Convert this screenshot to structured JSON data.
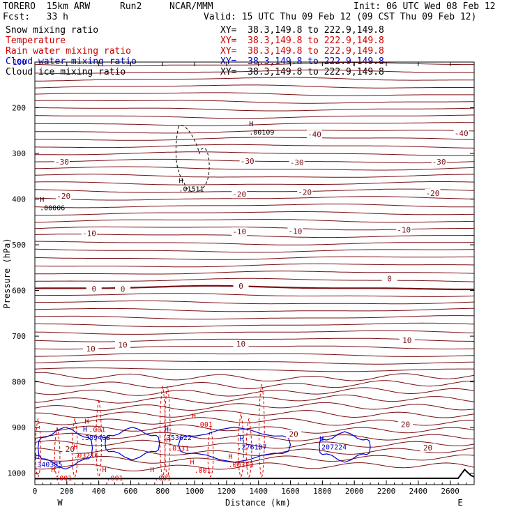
{
  "header": {
    "model": "TORERO  15km ARW",
    "run": "Run2",
    "org": "NCAR/MMM",
    "init": "Init: 06 UTC Wed 08 Feb 12",
    "fcst": "Fcst:   33 h",
    "valid": "Valid: 15 UTC Thu 09 Feb 12 (09 CST Thu 09 Feb 12)"
  },
  "fields": [
    {
      "name": "Snow mixing ratio",
      "xy": "XY=  38.3,149.8 to 222.9,149.8",
      "color": "#000000"
    },
    {
      "name": "Temperature",
      "xy": "XY=  38.3,149.8 to 222.9,149.8",
      "color": "#cc0000"
    },
    {
      "name": "Rain water mixing ratio",
      "xy": "XY=  38.3,149.8 to 222.9,149.8",
      "color": "#cc0000"
    },
    {
      "name": "Cloud water mixing ratio",
      "xy": "XY=  38.3,149.8 to 222.9,149.8",
      "color": "#0000cc"
    },
    {
      "name": "Cloud ice mixing ratio",
      "xy": "XY=  38.3,149.8 to 222.9,149.8",
      "color": "#000000"
    }
  ],
  "colors": {
    "temperature": "#7a0f12",
    "freezing_line": "#7a0f12",
    "rain": "#e00000",
    "cloud_water": "#0000cc",
    "ice": "#000000",
    "terrain": "#000000"
  },
  "chart_data": {
    "type": "contour",
    "xlabel": "Distance (km)",
    "ylabel": "Pressure (hPa)",
    "xlim": [
      0,
      2750
    ],
    "ylim": [
      100,
      1025
    ],
    "x_ticks": [
      0,
      200,
      400,
      600,
      800,
      1000,
      1200,
      1400,
      1600,
      1800,
      2000,
      2200,
      2400,
      2600
    ],
    "y_ticks": [
      200,
      300,
      400,
      500,
      600,
      700,
      800,
      900,
      1000
    ],
    "x_end_labels": {
      "left": "W",
      "right": "E"
    },
    "temperature_labels": [
      {
        "text": "-40",
        "x": 1750,
        "p": 258
      },
      {
        "text": "-40",
        "x": 2670,
        "p": 256
      },
      {
        "text": "-30",
        "x": 170,
        "p": 318
      },
      {
        "text": "-30",
        "x": 1330,
        "p": 317
      },
      {
        "text": "-30",
        "x": 1640,
        "p": 320
      },
      {
        "text": "-30",
        "x": 2530,
        "p": 318
      },
      {
        "text": "-20",
        "x": 180,
        "p": 393
      },
      {
        "text": "-20",
        "x": 1280,
        "p": 389
      },
      {
        "text": "-20",
        "x": 1690,
        "p": 385
      },
      {
        "text": "-20",
        "x": 2490,
        "p": 387
      },
      {
        "text": "-10",
        "x": 340,
        "p": 475
      },
      {
        "text": "-10",
        "x": 1280,
        "p": 471
      },
      {
        "text": "-10",
        "x": 1630,
        "p": 470
      },
      {
        "text": "-10",
        "x": 2310,
        "p": 467
      },
      {
        "text": "0",
        "x": 370,
        "p": 596
      },
      {
        "text": "0",
        "x": 550,
        "p": 597
      },
      {
        "text": "0",
        "x": 1290,
        "p": 590
      },
      {
        "text": "0",
        "x": 2220,
        "p": 574
      },
      {
        "text": "10",
        "x": 350,
        "p": 727
      },
      {
        "text": "10",
        "x": 550,
        "p": 719
      },
      {
        "text": "10",
        "x": 1290,
        "p": 717
      },
      {
        "text": "10",
        "x": 2330,
        "p": 709
      },
      {
        "text": "20",
        "x": 1620,
        "p": 914
      },
      {
        "text": "20",
        "x": 2320,
        "p": 893
      },
      {
        "text": "20",
        "x": 2460,
        "p": 944
      },
      {
        "text": "20",
        "x": 220,
        "p": 947
      }
    ],
    "maxima_labels": [
      {
        "text": ".00109",
        "x": 1420,
        "p": 253,
        "color": "#000000"
      },
      {
        "text": ".01511",
        "x": 980,
        "p": 377,
        "color": "#000000"
      },
      {
        "text": ".00006",
        "x": 110,
        "p": 418,
        "color": "#000000"
      },
      {
        "text": ".389408",
        "x": 380,
        "p": 921,
        "color": "#0000cc"
      },
      {
        "text": ".353622",
        "x": 890,
        "p": 921,
        "color": "#0000cc"
      },
      {
        "text": ".276107",
        "x": 1360,
        "p": 942,
        "color": "#0000cc"
      },
      {
        "text": ".207224",
        "x": 1860,
        "p": 942,
        "color": "#0000cc"
      },
      {
        "text": ".340385",
        "x": 80,
        "p": 980,
        "color": "#0000cc"
      },
      {
        "text": ".001",
        "x": 390,
        "p": 904,
        "color": "#e00000"
      },
      {
        "text": ".001",
        "x": 1060,
        "p": 892,
        "color": "#e00000"
      },
      {
        "text": ".03216",
        "x": 320,
        "p": 960,
        "color": "#e00000"
      },
      {
        "text": ".0331",
        "x": 900,
        "p": 945,
        "color": "#e00000"
      },
      {
        "text": ".00373",
        "x": 1290,
        "p": 981,
        "color": "#e00000"
      },
      {
        "text": ".001",
        "x": 1050,
        "p": 993,
        "color": "#e00000"
      },
      {
        "text": ".001",
        "x": 500,
        "p": 1010,
        "color": "#e00000"
      },
      {
        "text": ".001",
        "x": 800,
        "p": 1010,
        "color": "#e00000"
      },
      {
        "text": ".001",
        "x": 180,
        "p": 1010,
        "color": "#e00000"
      }
    ]
  }
}
